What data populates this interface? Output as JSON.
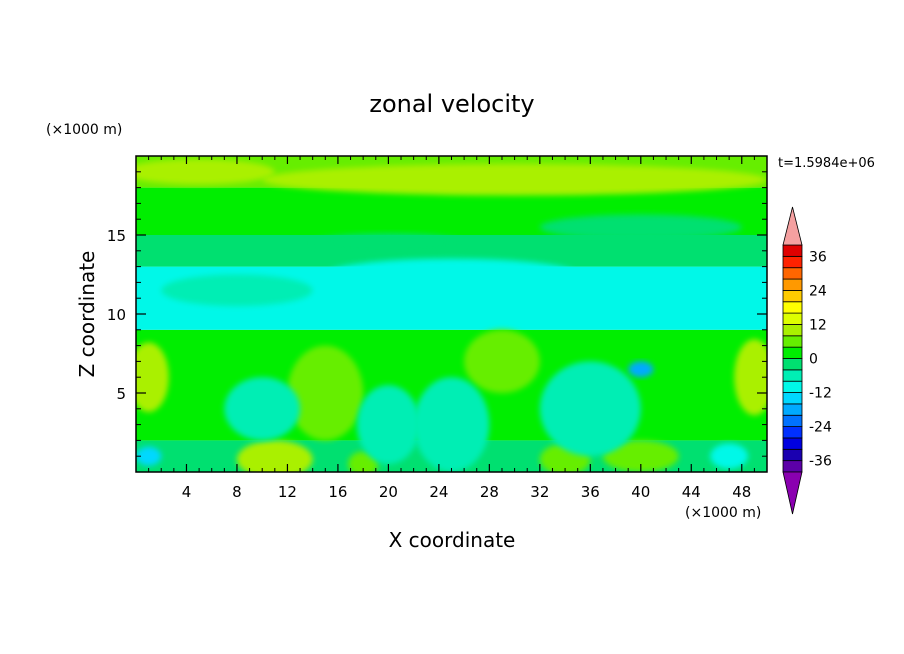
{
  "chart_data": {
    "type": "heatmap",
    "title": "zonal velocity",
    "xlabel": "X coordinate",
    "ylabel": "Z coordinate",
    "x_unit": "(×1000 m)",
    "y_unit": "(×1000 m)",
    "time_label": "t=1.5984e+06",
    "xlim": [
      0,
      50
    ],
    "ylim": [
      0,
      20
    ],
    "x_ticks": [
      4,
      8,
      12,
      16,
      20,
      24,
      28,
      32,
      36,
      40,
      44,
      48
    ],
    "y_ticks": [
      5,
      10,
      15
    ],
    "colorbar": {
      "levels": [
        -40,
        -36,
        -32,
        -28,
        -24,
        -20,
        -16,
        -12,
        -8,
        -4,
        0,
        4,
        8,
        12,
        16,
        20,
        24,
        28,
        32,
        36,
        40
      ],
      "colors": [
        "#5c00a8",
        "#1a00b0",
        "#0000e0",
        "#0030ff",
        "#0072ff",
        "#00aaff",
        "#00d8ff",
        "#00f8e8",
        "#00eeb4",
        "#00e070",
        "#00ee00",
        "#66ee00",
        "#aaf000",
        "#ddff00",
        "#ffff00",
        "#ffcc00",
        "#ff9900",
        "#ff6600",
        "#ff2200",
        "#e00000"
      ],
      "tick_labels": [
        "36",
        "24",
        "12",
        "0",
        "-12",
        "-24",
        "-36"
      ],
      "under_color": "#8a00b0",
      "over_color": "#f5a0a0"
    },
    "field_summary": [
      {
        "z_range": [
          0,
          2
        ],
        "u": -4
      },
      {
        "z_range": [
          2,
          9
        ],
        "u": 0
      },
      {
        "z_range": [
          9,
          13
        ],
        "u": -10
      },
      {
        "z_range": [
          13,
          15
        ],
        "u": -4
      },
      {
        "z_range": [
          15,
          18
        ],
        "u": 2
      },
      {
        "z_range": [
          18,
          20
        ],
        "u": 6
      }
    ]
  }
}
